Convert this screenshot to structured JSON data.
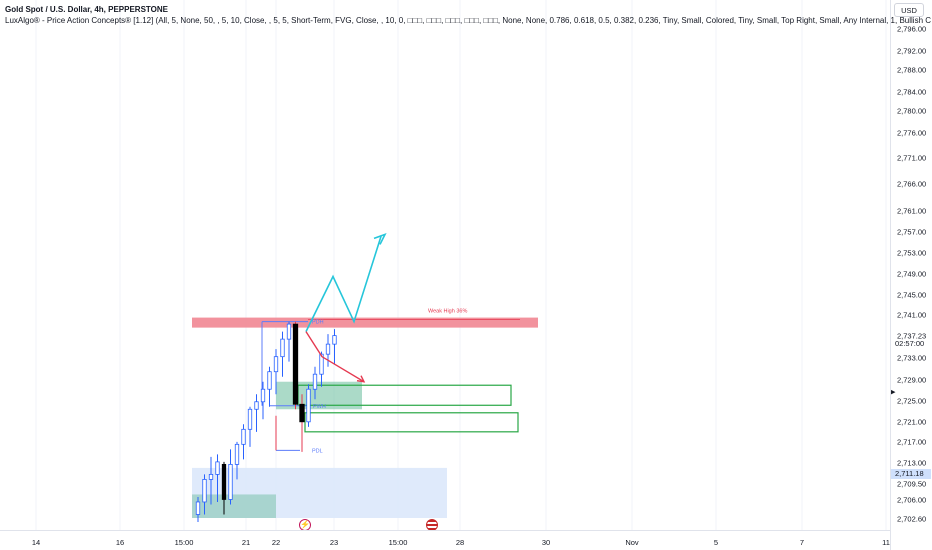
{
  "header": {
    "title": "Gold Spot / U.S. Dollar, 4h, PEPPERSTONE",
    "indicator": "LuxAlgo® - Price Action Concepts® [1.12] (All, 5, None, 50, , 5, 10, Close, , 5, 5, Short-Term, FVG, Close, , 10, 0, □□□, □□□, □□□, □□□, □□□, None, None, 0.786, 0.618, 0.5, 0.382, 0.236, Tiny, Small, Colored, Tiny, Small, Top Right, Small, Any Internal, 1, Bullish C"
  },
  "currency": "USD",
  "price_axis": {
    "ticks": [
      "2,796.00",
      "2,792.00",
      "2,788.00",
      "2,784.00",
      "2,780.00",
      "2,776.00",
      "2,771.00",
      "2,766.00",
      "2,761.00",
      "2,757.00",
      "2,753.00",
      "2,749.00",
      "2,745.00",
      "2,741.00",
      "2,737.23",
      "02:57:00",
      "2,733.00",
      "2,729.00",
      "2,725.00",
      "2,721.00",
      "2,717.00",
      "2,713.00",
      "2,711.18",
      "2,709.50",
      "2,706.00",
      "2,702.60"
    ],
    "current_price": "2,711.18",
    "countdown": "02:57:00"
  },
  "time_axis": {
    "ticks": [
      "14",
      "16",
      "15:00",
      "21",
      "22",
      "23",
      "15:00",
      "28",
      "30",
      "Nov",
      "5",
      "7",
      "11"
    ]
  },
  "annotations": {
    "pdh": "PDH",
    "pwh": "PWH",
    "pdl": "PDL",
    "weak_high": "Weak High 36%"
  },
  "colors": {
    "bull_candle": "#2962ff",
    "bear_candle": "#000000",
    "projection_up": "#26c6da",
    "projection_down": "#e53950",
    "resistance_zone": "#f07f8c",
    "ob_zone": "#66bb9a",
    "fvg_box": "#28a745",
    "demand_zone": "#dce8fb"
  },
  "chart_data": {
    "type": "candlestick",
    "symbol": "Gold Spot / U.S. Dollar",
    "timeframe": "4h",
    "ylim": [
      2700.8,
      2798.6
    ],
    "candles": [
      {
        "o": 2701.5,
        "h": 2705.0,
        "l": 2700.0,
        "c": 2704.0
      },
      {
        "o": 2704.0,
        "h": 2709.5,
        "l": 2701.5,
        "c": 2708.5
      },
      {
        "o": 2708.5,
        "h": 2713.0,
        "l": 2703.5,
        "c": 2709.5
      },
      {
        "o": 2709.5,
        "h": 2713.5,
        "l": 2704.0,
        "c": 2712.0
      },
      {
        "o": 2711.5,
        "h": 2712.0,
        "l": 2701.5,
        "c": 2704.5
      },
      {
        "o": 2704.5,
        "h": 2714.5,
        "l": 2703.5,
        "c": 2711.5
      },
      {
        "o": 2711.5,
        "h": 2716.0,
        "l": 2708.5,
        "c": 2715.5
      },
      {
        "o": 2715.5,
        "h": 2719.5,
        "l": 2712.5,
        "c": 2718.5
      },
      {
        "o": 2718.5,
        "h": 2723.0,
        "l": 2715.0,
        "c": 2722.5
      },
      {
        "o": 2722.5,
        "h": 2725.5,
        "l": 2718.0,
        "c": 2724.0
      },
      {
        "o": 2724.0,
        "h": 2728.0,
        "l": 2720.5,
        "c": 2726.5
      },
      {
        "o": 2726.5,
        "h": 2731.0,
        "l": 2723.0,
        "c": 2730.0
      },
      {
        "o": 2730.0,
        "h": 2734.5,
        "l": 2725.5,
        "c": 2733.0
      },
      {
        "o": 2733.0,
        "h": 2738.0,
        "l": 2729.0,
        "c": 2736.5
      },
      {
        "o": 2736.5,
        "h": 2740.0,
        "l": 2732.0,
        "c": 2739.5
      },
      {
        "o": 2739.5,
        "h": 2740.0,
        "l": 2722.5,
        "c": 2723.5
      },
      {
        "o": 2723.5,
        "h": 2725.5,
        "l": 2714.0,
        "c": 2720.0
      },
      {
        "o": 2720.0,
        "h": 2727.5,
        "l": 2719.0,
        "c": 2726.5
      },
      {
        "o": 2726.5,
        "h": 2731.0,
        "l": 2724.5,
        "c": 2729.5
      },
      {
        "o": 2729.5,
        "h": 2734.0,
        "l": 2727.0,
        "c": 2733.5
      },
      {
        "o": 2733.5,
        "h": 2737.5,
        "l": 2731.0,
        "c": 2735.5
      },
      {
        "o": 2735.5,
        "h": 2738.5,
        "l": 2731.5,
        "c": 2737.2
      }
    ],
    "zones": [
      {
        "name": "resistance",
        "y": [
          2738.8,
          2740.8
        ]
      },
      {
        "name": "order-block",
        "y": [
          2722.5,
          2728.0
        ]
      },
      {
        "name": "fvg-upper",
        "y": [
          2723.3,
          2727.3
        ]
      },
      {
        "name": "fvg-lower",
        "y": [
          2718.0,
          2721.8
        ]
      },
      {
        "name": "demand",
        "y": [
          2700.8,
          2710.8
        ]
      },
      {
        "name": "demand-ob",
        "y": [
          2700.8,
          2705.5
        ]
      }
    ],
    "levels": {
      "PDH": 2740.0,
      "PWH": 2723.2,
      "PDL": 2714.3,
      "Weak High 36%": 2740.4
    },
    "projection_up": [
      2738.0,
      2749.0,
      2740.0,
      2757.0
    ],
    "projection_down": [
      2738.0,
      2733.0,
      2728.0
    ]
  }
}
